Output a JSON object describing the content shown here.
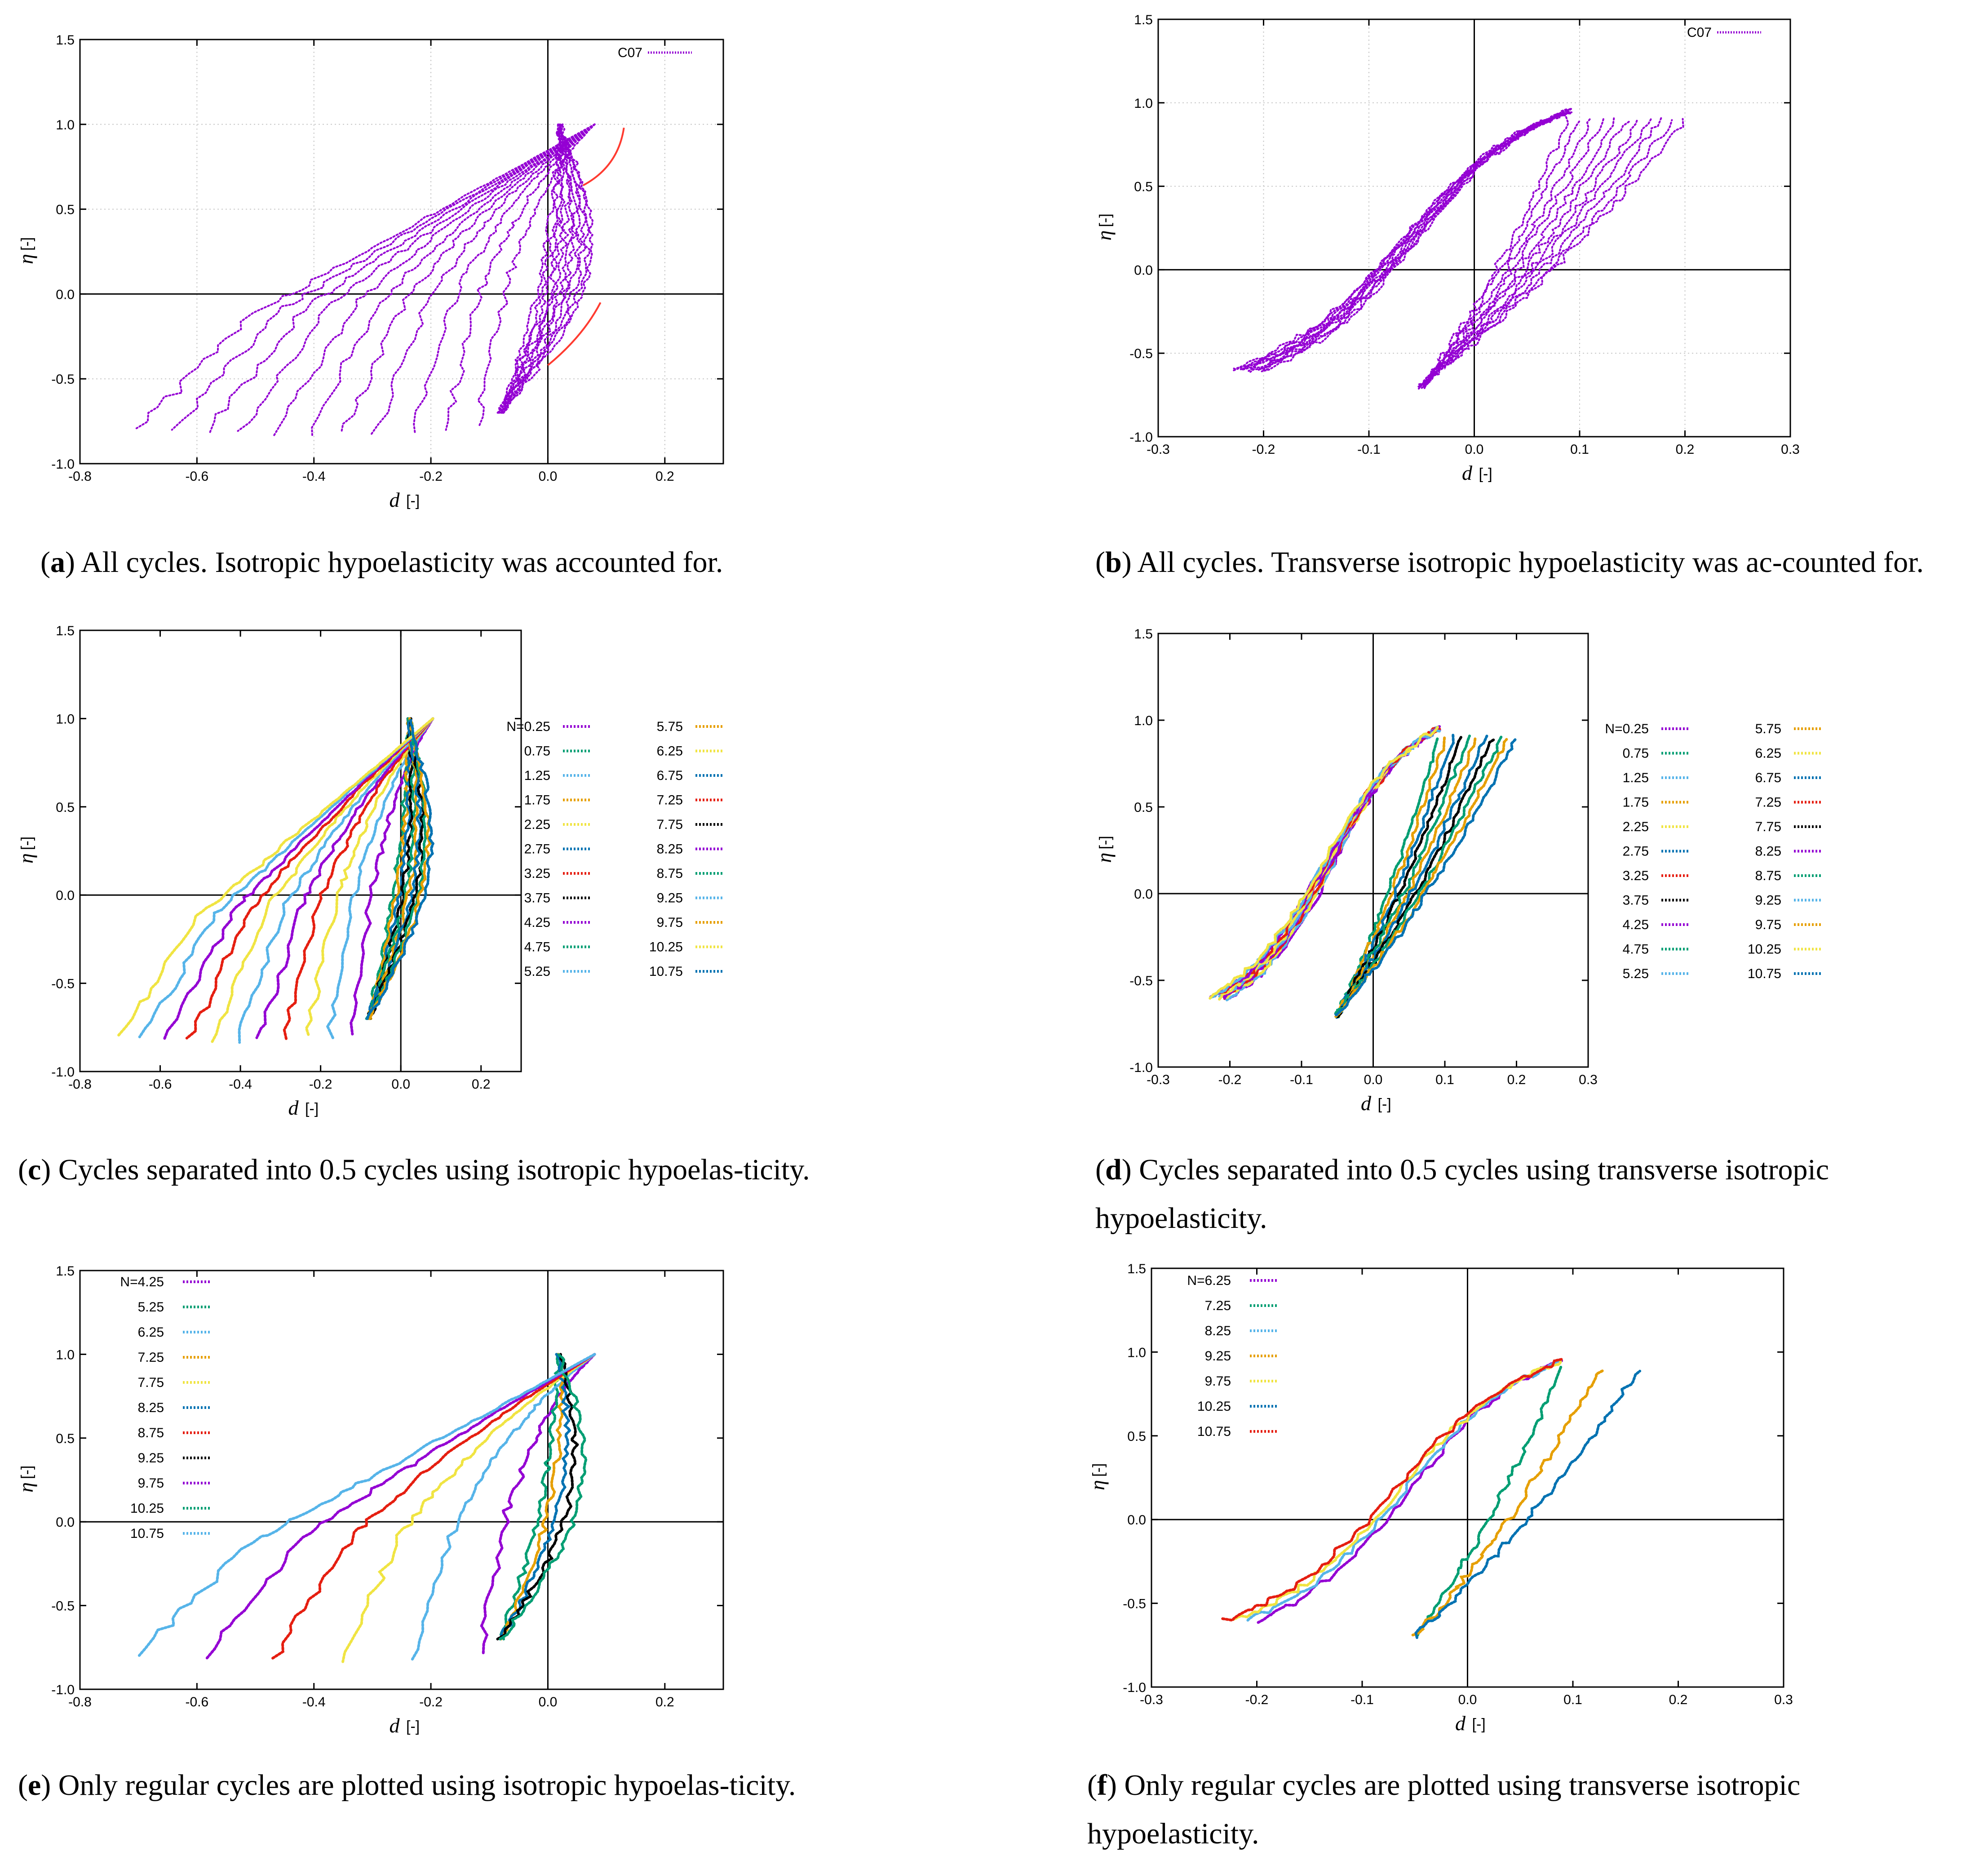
{
  "chart_data": [
    {
      "id": "a",
      "type": "scatter",
      "xlabel": "d",
      "xunit": "[-]",
      "ylabel": "η",
      "yunit": "[-]",
      "xlim": [
        -0.8,
        0.3
      ],
      "ylim": [
        -1.0,
        1.5
      ],
      "xticks": [
        -0.8,
        -0.6,
        -0.4,
        -0.2,
        0.0,
        0.2
      ],
      "xtick_labels": [
        "-0.8",
        "-0.6",
        "-0.4",
        "-0.2",
        "0.0",
        "0.2"
      ],
      "yticks": [
        -1.0,
        -0.5,
        0.0,
        0.5,
        1.0,
        1.5
      ],
      "ytick_labels": [
        "-1.0",
        "-0.5",
        "0.0",
        "0.5",
        "1.0",
        "1.5"
      ],
      "grid": true,
      "legend_pos": "top-right",
      "legend_cols": 1,
      "series": [
        {
          "name": "C07",
          "color": "#9400d3",
          "family": "iso",
          "count": 22
        }
      ],
      "annotations": "red arrows indicating loop direction",
      "caption_label": "a",
      "caption": "All cycles. Isotropic hypoelasticity was accounted for."
    },
    {
      "id": "b",
      "type": "scatter",
      "xlabel": "d",
      "xunit": "[-]",
      "ylabel": "η",
      "yunit": "[-]",
      "xlim": [
        -0.3,
        0.3
      ],
      "ylim": [
        -1.0,
        1.5
      ],
      "xticks": [
        -0.3,
        -0.2,
        -0.1,
        0.0,
        0.1,
        0.2,
        0.3
      ],
      "xtick_labels": [
        "-0.3",
        "-0.2",
        "-0.1",
        "0.0",
        "0.1",
        "0.2",
        "0.3"
      ],
      "yticks": [
        -1.0,
        -0.5,
        0.0,
        0.5,
        1.0,
        1.5
      ],
      "ytick_labels": [
        "-1.0",
        "-0.5",
        "0.0",
        "0.5",
        "1.0",
        "1.5"
      ],
      "grid": true,
      "legend_pos": "top-right",
      "legend_cols": 1,
      "series": [
        {
          "name": "C07",
          "color": "#9400d3",
          "family": "trans",
          "count": 22
        }
      ],
      "caption_label": "b",
      "caption": "All cycles.  Transverse isotropic hypoelasticity was ac-counted for."
    },
    {
      "id": "c",
      "type": "scatter",
      "xlabel": "d",
      "xunit": "[-]",
      "ylabel": "η",
      "yunit": "[-]",
      "xlim": [
        -0.8,
        0.3
      ],
      "ylim": [
        -1.0,
        1.5
      ],
      "xticks": [
        -0.8,
        -0.6,
        -0.4,
        -0.2,
        0.0,
        0.2
      ],
      "xtick_labels": [
        "-0.8",
        "-0.6",
        "-0.4",
        "-0.2",
        "0.0",
        "0.2"
      ],
      "yticks": [
        -1.0,
        -0.5,
        0.0,
        0.5,
        1.0,
        1.5
      ],
      "ytick_labels": [
        "-1.0",
        "-0.5",
        "0.0",
        "0.5",
        "1.0",
        "1.5"
      ],
      "grid": false,
      "legend_pos": "outside-right",
      "legend_cols": 2,
      "series": [
        {
          "name": "N=0.25",
          "color": "#9400d3",
          "family": "iso"
        },
        {
          "name": "0.75",
          "color": "#009e73",
          "family": "iso"
        },
        {
          "name": "1.25",
          "color": "#56b4e9",
          "family": "iso"
        },
        {
          "name": "1.75",
          "color": "#e69f00",
          "family": "iso"
        },
        {
          "name": "2.25",
          "color": "#f0e442",
          "family": "iso"
        },
        {
          "name": "2.75",
          "color": "#0072b2",
          "family": "iso"
        },
        {
          "name": "3.25",
          "color": "#e51e10",
          "family": "iso"
        },
        {
          "name": "3.75",
          "color": "#000000",
          "family": "iso"
        },
        {
          "name": "4.25",
          "color": "#9400d3",
          "family": "iso"
        },
        {
          "name": "4.75",
          "color": "#009e73",
          "family": "iso"
        },
        {
          "name": "5.25",
          "color": "#56b4e9",
          "family": "iso"
        },
        {
          "name": "5.75",
          "color": "#e69f00",
          "family": "iso"
        },
        {
          "name": "6.25",
          "color": "#f0e442",
          "family": "iso"
        },
        {
          "name": "6.75",
          "color": "#0072b2",
          "family": "iso"
        },
        {
          "name": "7.25",
          "color": "#e51e10",
          "family": "iso"
        },
        {
          "name": "7.75",
          "color": "#000000",
          "family": "iso"
        },
        {
          "name": "8.25",
          "color": "#9400d3",
          "family": "iso"
        },
        {
          "name": "8.75",
          "color": "#009e73",
          "family": "iso"
        },
        {
          "name": "9.25",
          "color": "#56b4e9",
          "family": "iso"
        },
        {
          "name": "9.75",
          "color": "#e69f00",
          "family": "iso"
        },
        {
          "name": "10.25",
          "color": "#f0e442",
          "family": "iso"
        },
        {
          "name": "10.75",
          "color": "#0072b2",
          "family": "iso"
        }
      ],
      "caption_label": "c",
      "caption": "Cycles separated into 0.5 cycles using isotropic hypoelas-ticity."
    },
    {
      "id": "d",
      "type": "scatter",
      "xlabel": "d",
      "xunit": "[-]",
      "ylabel": "η",
      "yunit": "[-]",
      "xlim": [
        -0.3,
        0.3
      ],
      "ylim": [
        -1.0,
        1.5
      ],
      "xticks": [
        -0.3,
        -0.2,
        -0.1,
        0.0,
        0.1,
        0.2,
        0.3
      ],
      "xtick_labels": [
        "-0.3",
        "-0.2",
        "-0.1",
        "0.0",
        "0.1",
        "0.2",
        "0.3"
      ],
      "yticks": [
        -1.0,
        -0.5,
        0.0,
        0.5,
        1.0,
        1.5
      ],
      "ytick_labels": [
        "-1.0",
        "-0.5",
        "0.0",
        "0.5",
        "1.0",
        "1.5"
      ],
      "grid": false,
      "legend_pos": "outside-right",
      "legend_cols": 2,
      "series": [
        {
          "name": "N=0.25",
          "color": "#9400d3",
          "family": "trans"
        },
        {
          "name": "0.75",
          "color": "#009e73",
          "family": "trans"
        },
        {
          "name": "1.25",
          "color": "#56b4e9",
          "family": "trans"
        },
        {
          "name": "1.75",
          "color": "#e69f00",
          "family": "trans"
        },
        {
          "name": "2.25",
          "color": "#f0e442",
          "family": "trans"
        },
        {
          "name": "2.75",
          "color": "#0072b2",
          "family": "trans"
        },
        {
          "name": "3.25",
          "color": "#e51e10",
          "family": "trans"
        },
        {
          "name": "3.75",
          "color": "#000000",
          "family": "trans"
        },
        {
          "name": "4.25",
          "color": "#9400d3",
          "family": "trans"
        },
        {
          "name": "4.75",
          "color": "#009e73",
          "family": "trans"
        },
        {
          "name": "5.25",
          "color": "#56b4e9",
          "family": "trans"
        },
        {
          "name": "5.75",
          "color": "#e69f00",
          "family": "trans"
        },
        {
          "name": "6.25",
          "color": "#f0e442",
          "family": "trans"
        },
        {
          "name": "6.75",
          "color": "#0072b2",
          "family": "trans"
        },
        {
          "name": "7.25",
          "color": "#e51e10",
          "family": "trans"
        },
        {
          "name": "7.75",
          "color": "#000000",
          "family": "trans"
        },
        {
          "name": "8.25",
          "color": "#9400d3",
          "family": "trans"
        },
        {
          "name": "8.75",
          "color": "#009e73",
          "family": "trans"
        },
        {
          "name": "9.25",
          "color": "#56b4e9",
          "family": "trans"
        },
        {
          "name": "9.75",
          "color": "#e69f00",
          "family": "trans"
        },
        {
          "name": "10.25",
          "color": "#f0e442",
          "family": "trans"
        },
        {
          "name": "10.75",
          "color": "#0072b2",
          "family": "trans"
        }
      ],
      "caption_label": "d",
      "caption": "Cycles separated into 0.5 cycles using transverse isotropic hypoelasticity."
    },
    {
      "id": "e",
      "type": "scatter",
      "xlabel": "d",
      "xunit": "[-]",
      "ylabel": "η",
      "yunit": "[-]",
      "xlim": [
        -0.8,
        0.3
      ],
      "ylim": [
        -1.0,
        1.5
      ],
      "xticks": [
        -0.8,
        -0.6,
        -0.4,
        -0.2,
        0.0,
        0.2
      ],
      "xtick_labels": [
        "-0.8",
        "-0.6",
        "-0.4",
        "-0.2",
        "0.0",
        "0.2"
      ],
      "yticks": [
        -1.0,
        -0.5,
        0.0,
        0.5,
        1.0,
        1.5
      ],
      "ytick_labels": [
        "-1.0",
        "-0.5",
        "0.0",
        "0.5",
        "1.0",
        "1.5"
      ],
      "grid": false,
      "legend_pos": "top-left",
      "legend_cols": 1,
      "series": [
        {
          "name": "N=4.25",
          "color": "#9400d3",
          "family": "iso"
        },
        {
          "name": "5.25",
          "color": "#009e73",
          "family": "iso"
        },
        {
          "name": "6.25",
          "color": "#56b4e9",
          "family": "iso"
        },
        {
          "name": "7.25",
          "color": "#e69f00",
          "family": "iso"
        },
        {
          "name": "7.75",
          "color": "#f0e442",
          "family": "iso"
        },
        {
          "name": "8.25",
          "color": "#0072b2",
          "family": "iso"
        },
        {
          "name": "8.75",
          "color": "#e51e10",
          "family": "iso"
        },
        {
          "name": "9.25",
          "color": "#000000",
          "family": "iso"
        },
        {
          "name": "9.75",
          "color": "#9400d3",
          "family": "iso"
        },
        {
          "name": "10.25",
          "color": "#009e73",
          "family": "iso"
        },
        {
          "name": "10.75",
          "color": "#56b4e9",
          "family": "iso"
        }
      ],
      "caption_label": "e",
      "caption": "Only regular cycles are plotted using isotropic hypoelas-ticity."
    },
    {
      "id": "f",
      "type": "scatter",
      "xlabel": "d",
      "xunit": "[-]",
      "ylabel": "η",
      "yunit": "[-]",
      "xlim": [
        -0.3,
        0.3
      ],
      "ylim": [
        -1.0,
        1.5
      ],
      "xticks": [
        -0.3,
        -0.2,
        -0.1,
        0.0,
        0.1,
        0.2,
        0.3
      ],
      "xtick_labels": [
        "-0.3",
        "-0.2",
        "-0.1",
        "0.0",
        "0.1",
        "0.2",
        "0.3"
      ],
      "yticks": [
        -1.0,
        -0.5,
        0.0,
        0.5,
        1.0,
        1.5
      ],
      "ytick_labels": [
        "-1.0",
        "-0.5",
        "0.0",
        "0.5",
        "1.0",
        "1.5"
      ],
      "grid": false,
      "legend_pos": "top-left",
      "legend_cols": 1,
      "series": [
        {
          "name": "N=6.25",
          "color": "#9400d3",
          "family": "trans"
        },
        {
          "name": "7.25",
          "color": "#009e73",
          "family": "trans"
        },
        {
          "name": "8.25",
          "color": "#56b4e9",
          "family": "trans"
        },
        {
          "name": "9.25",
          "color": "#e69f00",
          "family": "trans"
        },
        {
          "name": "9.75",
          "color": "#f0e442",
          "family": "trans"
        },
        {
          "name": "10.25",
          "color": "#0072b2",
          "family": "trans"
        },
        {
          "name": "10.75",
          "color": "#e51e10",
          "family": "trans"
        }
      ],
      "caption_label": "f",
      "caption": "Only regular cycles are plotted using transverse isotropic hypoelasticity."
    }
  ]
}
